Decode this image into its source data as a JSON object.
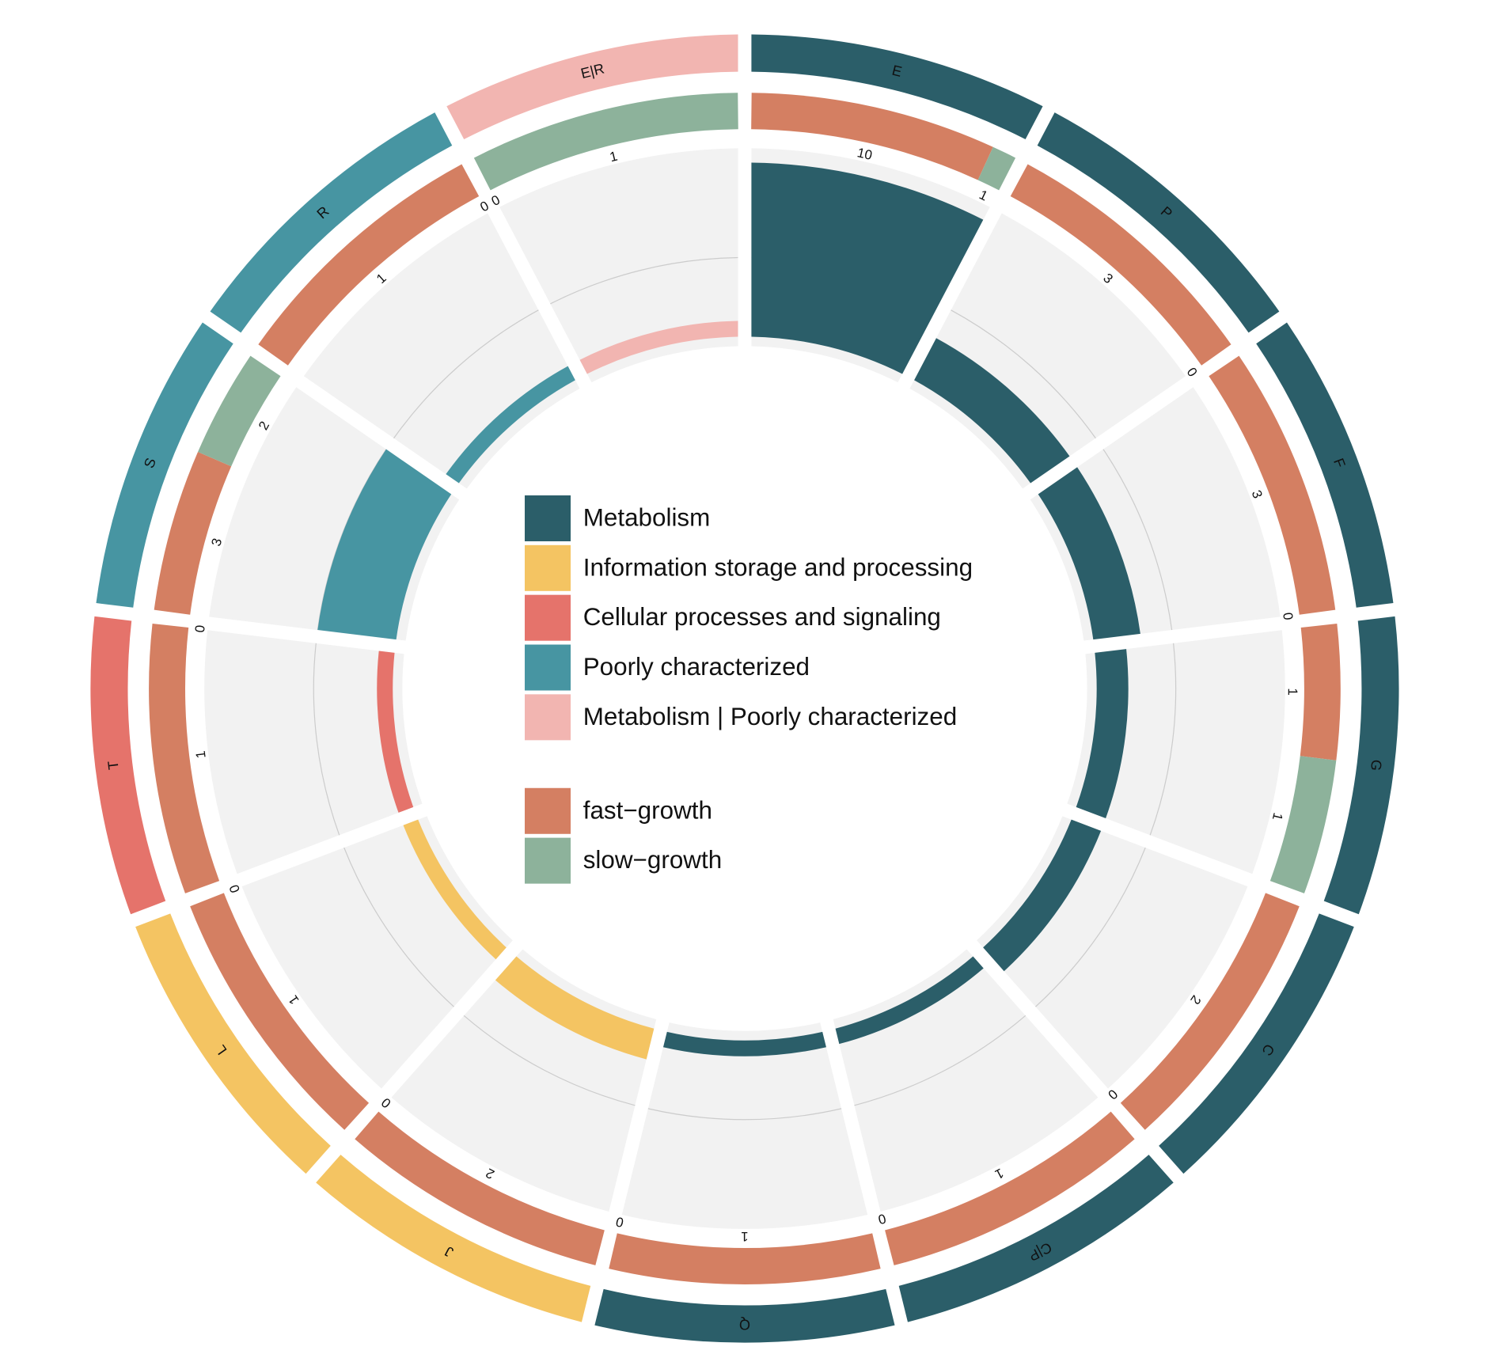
{
  "chart_data": {
    "type": "circular-bar",
    "categories": [
      "E",
      "P",
      "F",
      "G",
      "C",
      "C|P",
      "Q",
      "J",
      "L",
      "T",
      "S",
      "R",
      "E|R"
    ],
    "groups": [
      "Metabolism",
      "Metabolism",
      "Metabolism",
      "Metabolism",
      "Metabolism",
      "Metabolism",
      "Metabolism",
      "Information storage and processing",
      "Information storage and processing",
      "Cellular processes and signaling",
      "Poorly characterized",
      "Poorly characterized",
      "Metabolism | Poorly characterized"
    ],
    "legend": [
      {
        "name": "Metabolism",
        "color": "#2b5e69"
      },
      {
        "name": "Information storage and processing",
        "color": "#f4c462"
      },
      {
        "name": "Cellular processes and signaling",
        "color": "#e5736b"
      },
      {
        "name": "Poorly characterized",
        "color": "#4795a2"
      },
      {
        "name": "Metabolism | Poorly characterized",
        "color": "#f2b5b1"
      }
    ],
    "values": [
      11,
      3,
      3,
      2,
      2,
      1,
      1,
      2,
      1,
      1,
      5,
      1,
      1
    ],
    "rlim": [
      0,
      11
    ],
    "rticks": [
      5
    ],
    "series": [
      {
        "name": "fast−growth",
        "color": "#d47f62",
        "values": [
          10,
          3,
          3,
          1,
          2,
          1,
          1,
          2,
          1,
          1,
          3,
          1,
          0
        ]
      },
      {
        "name": "slow−growth",
        "color": "#8db29b",
        "values": [
          1,
          0,
          0,
          1,
          0,
          0,
          0,
          0,
          0,
          0,
          2,
          0,
          1
        ]
      }
    ]
  }
}
